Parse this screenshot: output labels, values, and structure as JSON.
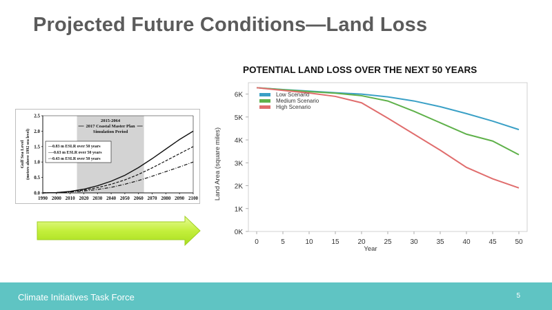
{
  "slide": {
    "title": "Projected Future Conditions—Land Loss",
    "footer": "Climate Initiatives Task Force",
    "page_number": "5"
  },
  "chart_data": [
    {
      "type": "line",
      "ylabel": "Gulf Sea Level",
      "ylabel2": "(meters above 1992 sea level)",
      "x": [
        1990,
        2000,
        2010,
        2020,
        2030,
        2040,
        2050,
        2060,
        2070,
        2080,
        2090,
        2100
      ],
      "xlim": [
        1990,
        2100
      ],
      "ylim": [
        0,
        2.5
      ],
      "yticks": [
        "0.0",
        "0.5",
        "1.0",
        "1.5",
        "2.0",
        "2.5"
      ],
      "xticks": [
        "1990",
        "2000",
        "2010",
        "2020",
        "2030",
        "2040",
        "2050",
        "2060",
        "2070",
        "2080",
        "2090",
        "2100"
      ],
      "shaded_period": {
        "range": [
          2015,
          2064
        ],
        "label": [
          "2015-2064",
          "2017 Coastal Master Plan",
          "Simulation Period"
        ]
      },
      "series": [
        {
          "name": "0.83 m ESLR over 50 years",
          "style": "solid",
          "values": [
            0,
            0.01,
            0.05,
            0.12,
            0.23,
            0.38,
            0.57,
            0.82,
            1.11,
            1.42,
            1.73,
            2.0
          ]
        },
        {
          "name": "0.63 m ESLR over 50 years",
          "style": "dashed",
          "values": [
            0,
            0.01,
            0.04,
            0.09,
            0.17,
            0.28,
            0.42,
            0.6,
            0.81,
            1.04,
            1.27,
            1.5
          ]
        },
        {
          "name": "0.43 m ESLR over 50 years",
          "style": "dotdash",
          "values": [
            0,
            0.01,
            0.03,
            0.06,
            0.11,
            0.18,
            0.28,
            0.4,
            0.54,
            0.69,
            0.84,
            1.0
          ]
        }
      ],
      "legend_prefixes": {
        "solid": "—",
        "dashed": "----",
        "dotdash": "-·-"
      }
    },
    {
      "type": "line",
      "title": "POTENTIAL LAND LOSS OVER THE NEXT 50 YEARS",
      "xlabel": "Year",
      "ylabel": "Land Area (square miles)",
      "x": [
        0,
        5,
        10,
        15,
        20,
        25,
        30,
        35,
        40,
        45,
        50
      ],
      "xlim": [
        0,
        50
      ],
      "ylim": [
        0,
        6500
      ],
      "yticks": [
        0,
        1000,
        2000,
        3000,
        4000,
        5000,
        6000
      ],
      "ytick_labels": [
        "0K",
        "1K",
        "2K",
        "3K",
        "4K",
        "5K",
        "6K"
      ],
      "xtick_labels": [
        "0",
        "5",
        "10",
        "15",
        "20",
        "25",
        "30",
        "35",
        "40",
        "45",
        "50"
      ],
      "legend_position": "top-left",
      "series": [
        {
          "name": "Low Scenario",
          "color": "#3aa0c6",
          "values": [
            6280,
            6200,
            6130,
            6060,
            6000,
            5880,
            5700,
            5450,
            5150,
            4820,
            4450
          ]
        },
        {
          "name": "Medium Scenario",
          "color": "#5fb14a",
          "values": [
            6280,
            6190,
            6110,
            6040,
            5930,
            5700,
            5250,
            4750,
            4250,
            3950,
            3350
          ]
        },
        {
          "name": "High Scenario",
          "color": "#e06d6d",
          "values": [
            6280,
            6160,
            6050,
            5900,
            5620,
            4950,
            4250,
            3550,
            2800,
            2300,
            1900
          ]
        }
      ]
    }
  ]
}
